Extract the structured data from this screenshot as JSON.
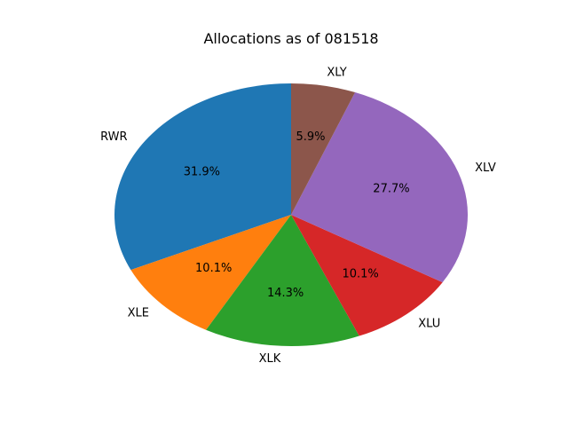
{
  "chart_data": {
    "type": "pie",
    "title": "Allocations as of 081518",
    "slices": [
      {
        "label": "RWR",
        "percent": 31.9,
        "pct_text": "31.9%",
        "color": "#1f77b4"
      },
      {
        "label": "XLE",
        "percent": 10.1,
        "pct_text": "10.1%",
        "color": "#ff7f0e"
      },
      {
        "label": "XLK",
        "percent": 14.3,
        "pct_text": "14.3%",
        "color": "#2ca02c"
      },
      {
        "label": "XLU",
        "percent": 10.1,
        "pct_text": "10.1%",
        "color": "#d62728"
      },
      {
        "label": "XLV",
        "percent": 27.7,
        "pct_text": "27.7%",
        "color": "#9467bd"
      },
      {
        "label": "XLY",
        "percent": 5.9,
        "pct_text": "5.9%",
        "color": "#8c564b"
      }
    ],
    "start_angle": "top",
    "direction": "counterclockwise",
    "legend": "none"
  }
}
